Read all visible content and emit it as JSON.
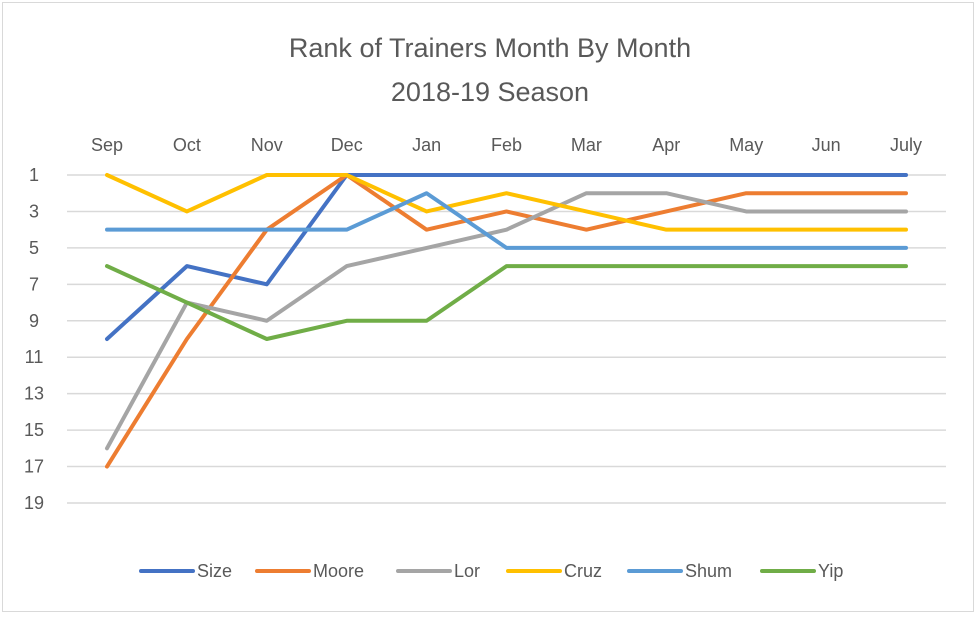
{
  "chart_data": {
    "type": "line",
    "title": "Rank of Trainers Month By Month",
    "subtitle": "2018-19 Season",
    "categories": [
      "Sep",
      "Oct",
      "Nov",
      "Dec",
      "Jan",
      "Feb",
      "Mar",
      "Apr",
      "May",
      "Jun",
      "July"
    ],
    "y_ticks": [
      1,
      3,
      5,
      7,
      9,
      11,
      13,
      15,
      17,
      19
    ],
    "ylim": [
      1,
      19
    ],
    "y_reversed": true,
    "x_axis_position": "top",
    "grid": true,
    "legend_position": "bottom",
    "series": [
      {
        "name": "Size",
        "color": "#4472c4",
        "values": [
          10,
          6,
          7,
          1,
          1,
          1,
          1,
          1,
          1,
          1,
          1
        ]
      },
      {
        "name": "Moore",
        "color": "#ed7d31",
        "values": [
          17,
          10,
          4,
          1,
          4,
          3,
          4,
          3,
          2,
          2,
          2
        ]
      },
      {
        "name": "Lor",
        "color": "#a5a5a5",
        "values": [
          16,
          8,
          9,
          6,
          5,
          4,
          2,
          2,
          3,
          3,
          3
        ]
      },
      {
        "name": "Cruz",
        "color": "#ffc000",
        "values": [
          1,
          3,
          1,
          1,
          3,
          2,
          3,
          4,
          4,
          4,
          4
        ]
      },
      {
        "name": "Shum",
        "color": "#5b9bd5",
        "values": [
          4,
          4,
          4,
          4,
          2,
          5,
          5,
          5,
          5,
          5,
          5
        ]
      },
      {
        "name": "Yip",
        "color": "#70ad47",
        "values": [
          6,
          8,
          10,
          9,
          9,
          6,
          6,
          6,
          6,
          6,
          6
        ]
      }
    ]
  }
}
